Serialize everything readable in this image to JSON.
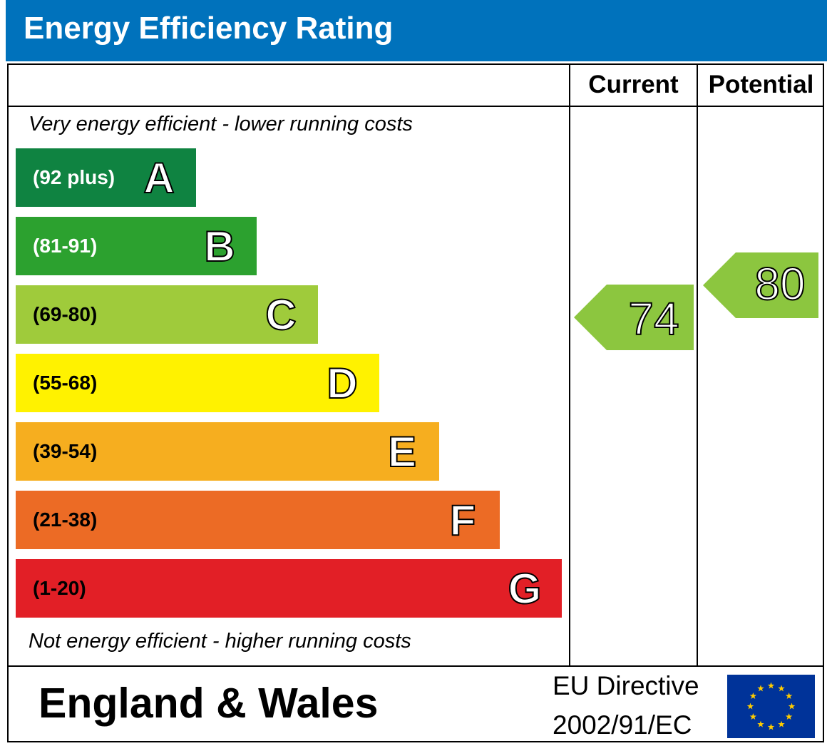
{
  "header": {
    "title": "Energy Efficiency Rating"
  },
  "columns": {
    "current": "Current",
    "potential": "Potential"
  },
  "notes": {
    "top": "Very energy efficient - lower running costs",
    "bottom": "Not energy efficient - higher running costs"
  },
  "chart_data": {
    "type": "bar",
    "title": "Energy Efficiency Rating",
    "categories": [
      "A",
      "B",
      "C",
      "D",
      "E",
      "F",
      "G"
    ],
    "bands": [
      {
        "letter": "A",
        "range": "(92 plus)",
        "color": "#008054",
        "text_color": "#ffffff"
      },
      {
        "letter": "B",
        "range": "(81-91)",
        "color": "#19b459",
        "text_color": "#ffffff"
      },
      {
        "letter": "C",
        "range": "(69-80)",
        "color": "#8dce46",
        "text_color": "#000000"
      },
      {
        "letter": "D",
        "range": "(55-68)",
        "color": "#ffd500",
        "text_color": "#000000"
      },
      {
        "letter": "E",
        "range": "(39-54)",
        "color": "#fcaa65",
        "text_color": "#000000"
      },
      {
        "letter": "F",
        "range": "(21-38)",
        "color": "#ef8023",
        "text_color": "#000000"
      },
      {
        "letter": "G",
        "range": "(1-20)",
        "color": "#e9153b",
        "text_color": "#000000"
      }
    ],
    "current": {
      "label": "Current",
      "value": 74,
      "band": "C"
    },
    "potential": {
      "label": "Potential",
      "value": 80,
      "band": "C"
    }
  },
  "footer": {
    "region": "England & Wales",
    "directive_line1": "EU Directive",
    "directive_line2": "2002/91/EC",
    "flag_icon": "eu-flag-icon"
  },
  "colors": {
    "title_bar": "#0072bc",
    "band_colors": [
      "#0f8341",
      "#2ca12f",
      "#9fcb3b",
      "#fff200",
      "#f6ae1f",
      "#ec6b25",
      "#e21f26"
    ],
    "arrow": "#8cc63f",
    "flag_blue": "#003399",
    "flag_star": "#ffcc00"
  }
}
